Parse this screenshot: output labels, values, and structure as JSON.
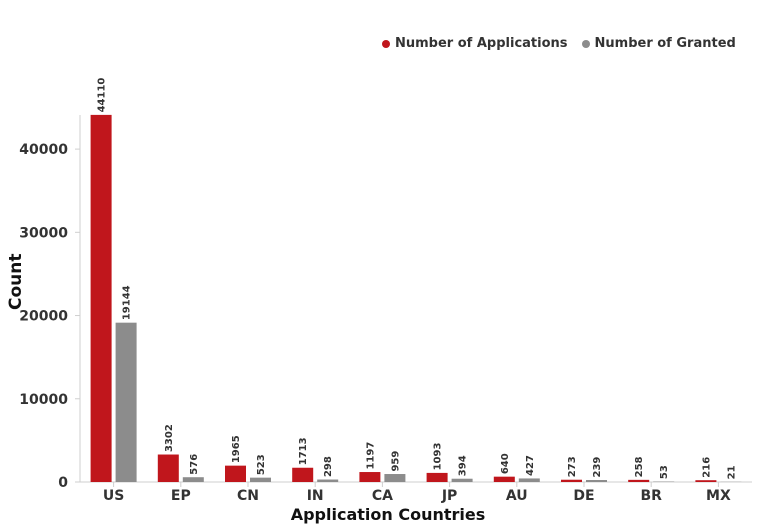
{
  "chart_data": {
    "type": "bar",
    "categories": [
      "US",
      "EP",
      "CN",
      "IN",
      "CA",
      "JP",
      "AU",
      "DE",
      "BR",
      "MX"
    ],
    "series": [
      {
        "name": "Number of Applications",
        "color": "#c0161c",
        "values": [
          44110,
          3302,
          1965,
          1713,
          1197,
          1093,
          640,
          273,
          258,
          216
        ]
      },
      {
        "name": "Number of Granted",
        "color": "#8c8c8c",
        "values": [
          19144,
          576,
          523,
          298,
          959,
          394,
          427,
          239,
          53,
          21
        ]
      }
    ],
    "xlabel": "Application Countries",
    "ylabel": "Count",
    "yticks": [
      0,
      10000,
      20000,
      30000,
      40000
    ],
    "ylim": [
      0,
      46500
    ],
    "legend_position": "top-right",
    "grid": false
  }
}
